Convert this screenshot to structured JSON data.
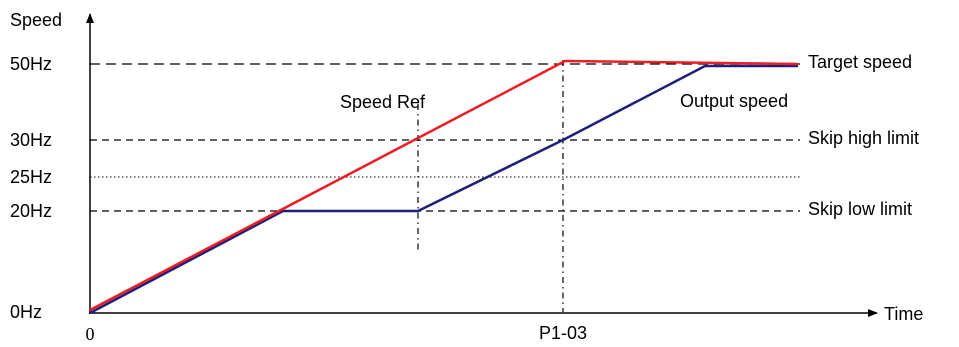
{
  "axes": {
    "y_label": "Speed",
    "x_label": "Time",
    "origin_label": "0",
    "x_marker_label": "P1-03"
  },
  "y_levels": [
    {
      "label": "50Hz",
      "value": 50
    },
    {
      "label": "30Hz",
      "value": 30
    },
    {
      "label": "25Hz",
      "value": 25
    },
    {
      "label": "20Hz",
      "value": 20
    },
    {
      "label": "0Hz",
      "value": 0
    }
  ],
  "right_labels": {
    "target_speed": "Target speed",
    "skip_high_limit": "Skip high limit",
    "skip_low_limit": "Skip low limit"
  },
  "annotations": {
    "speed_ref": "Speed Ref",
    "output_speed": "Output speed"
  },
  "colors": {
    "speed_reference_line": "#ee1c24",
    "output_speed_line": "#1f1f7a",
    "guide_lines": "#000000"
  }
}
